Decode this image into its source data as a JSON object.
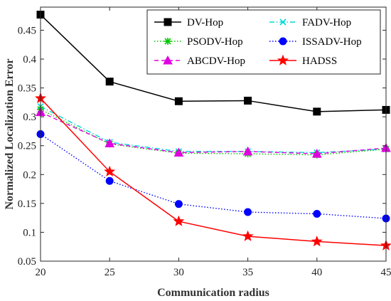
{
  "chart_data": {
    "type": "line",
    "title": "",
    "xlabel": "Communication radius",
    "ylabel": "Normalized  Localization Error",
    "x": [
      20,
      25,
      30,
      35,
      40,
      45
    ],
    "xlim": [
      20,
      45
    ],
    "ylim": [
      0.05,
      0.49
    ],
    "xticks": [
      "20",
      "25",
      "30",
      "35",
      "40",
      "45"
    ],
    "yticks": [
      "0.05",
      "0.1",
      "0.15",
      "0.2",
      "0.25",
      "0.3",
      "0.35",
      "0.4",
      "0.45"
    ],
    "grid": false,
    "legend_position": "top-right",
    "series": [
      {
        "name": "DV-Hop",
        "values": [
          0.477,
          0.361,
          0.327,
          0.328,
          0.309,
          0.312
        ],
        "color": "#000000",
        "dash": "solid",
        "marker": "square"
      },
      {
        "name": "FADV-Hop",
        "values": [
          0.318,
          0.256,
          0.24,
          0.24,
          0.238,
          0.244
        ],
        "color": "#00d8d8",
        "dash": "dashdot",
        "marker": "x"
      },
      {
        "name": "PSODV-Hop",
        "values": [
          0.313,
          0.253,
          0.237,
          0.236,
          0.234,
          0.244
        ],
        "color": "#00c800",
        "dash": "dotted",
        "marker": "asterisk"
      },
      {
        "name": "ISSADV-Hop",
        "values": [
          0.27,
          0.189,
          0.149,
          0.135,
          0.132,
          0.124
        ],
        "color": "#0000ff",
        "dash": "dotted",
        "marker": "circle"
      },
      {
        "name": "ABCDV-Hop",
        "values": [
          0.308,
          0.254,
          0.238,
          0.24,
          0.236,
          0.246
        ],
        "color": "#e000e0",
        "dash": "dashed",
        "marker": "triangle"
      },
      {
        "name": "HADSS",
        "values": [
          0.332,
          0.205,
          0.119,
          0.093,
          0.084,
          0.077
        ],
        "color": "#ff0000",
        "dash": "solid",
        "marker": "star"
      }
    ]
  }
}
